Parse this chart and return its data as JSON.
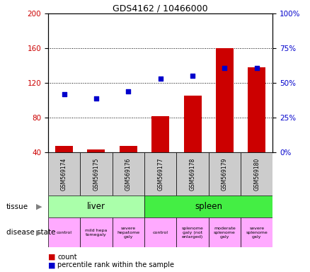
{
  "title": "GDS4162 / 10466000",
  "samples": [
    "GSM569174",
    "GSM569175",
    "GSM569176",
    "GSM569177",
    "GSM569178",
    "GSM569179",
    "GSM569180"
  ],
  "counts": [
    47,
    43,
    47,
    82,
    105,
    160,
    138
  ],
  "percentile_ranks_pct": [
    42,
    39,
    44,
    53,
    55,
    61,
    61
  ],
  "ylim_left": [
    40,
    200
  ],
  "ylim_right": [
    0,
    100
  ],
  "yticks_left": [
    40,
    80,
    120,
    160,
    200
  ],
  "yticks_right": [
    0,
    25,
    50,
    75,
    100
  ],
  "bar_color": "#cc0000",
  "dot_color": "#0000cc",
  "tissue_labels": [
    "liver",
    "spleen"
  ],
  "tissue_colors": [
    "#aaffaa",
    "#44ee44"
  ],
  "disease_state_labels": [
    "control",
    "mild hepa\ntomegaly",
    "severe\nhepatome\ngaly",
    "control",
    "splenome\ngaly (not\nenlarged)",
    "moderate\nsplenome\ngaly",
    "severe\nsplenome\ngaly"
  ],
  "disease_state_color": "#ffaaff",
  "sample_bg_color": "#cccccc",
  "n_liver": 3,
  "n_spleen": 4
}
